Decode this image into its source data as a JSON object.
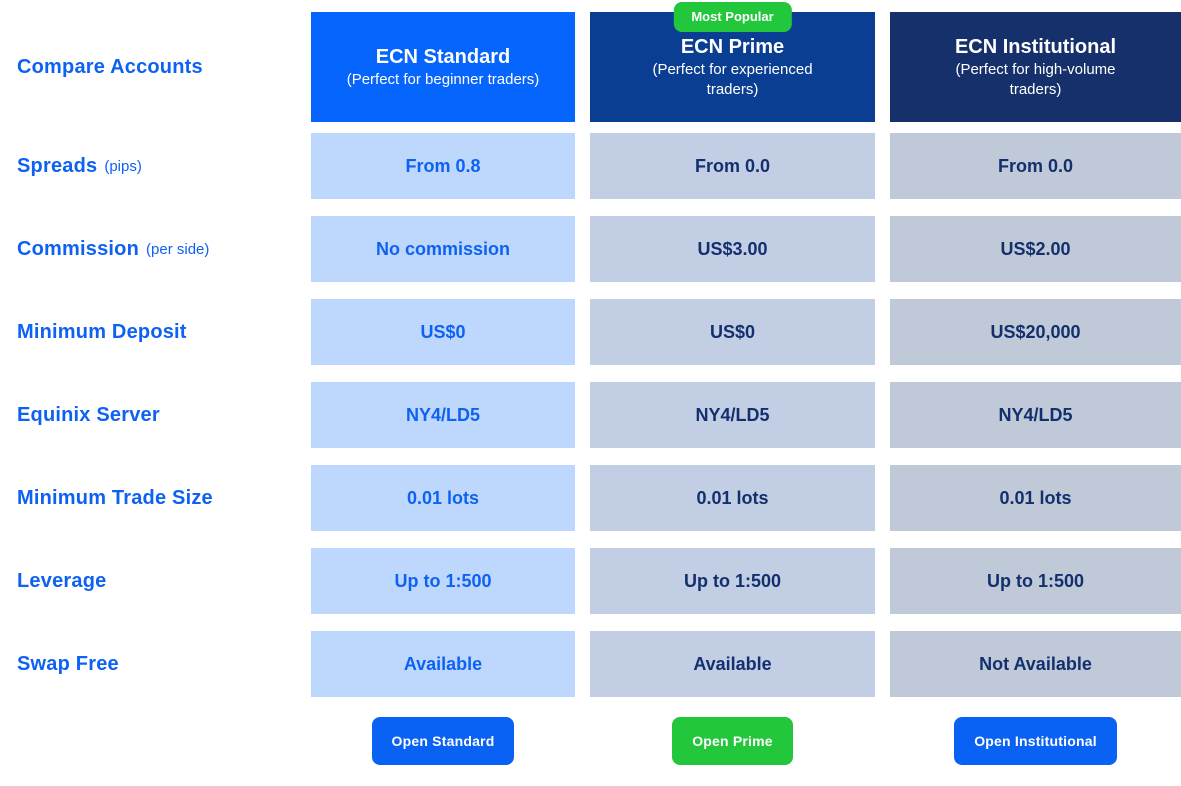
{
  "page": {
    "title_label": "Compare Accounts"
  },
  "colors": {
    "standard_header": "#0565fc",
    "prime_header": "#0a3e92",
    "institutional_header": "#16306b",
    "badge_green": "#23c73c",
    "button_blue": "#0a62f4",
    "standard_cell": "#bed7fc",
    "prime_cell": "#c1cee4",
    "institutional_cell": "#c0c9d8",
    "label_blue": "#0e62f3",
    "value_navy": "#132f6d"
  },
  "rows": [
    {
      "label": "Spreads",
      "note": "(pips)"
    },
    {
      "label": "Commission",
      "note": "(per side)"
    },
    {
      "label": "Minimum Deposit",
      "note": ""
    },
    {
      "label": "Equinix Server",
      "note": ""
    },
    {
      "label": "Minimum Trade Size",
      "note": ""
    },
    {
      "label": "Leverage",
      "note": ""
    },
    {
      "label": "Swap Free",
      "note": ""
    }
  ],
  "columns": [
    {
      "id": "standard",
      "title": "ECN Standard",
      "subtitle": "(Perfect for beginner traders)",
      "badge": "",
      "values": [
        "From 0.8",
        "No commission",
        "US$0",
        "NY4/LD5",
        "0.01 lots",
        "Up to 1:500",
        "Available"
      ],
      "button_label": "Open Standard"
    },
    {
      "id": "prime",
      "title": "ECN Prime",
      "subtitle": "(Perfect for experienced traders)",
      "badge": "Most Popular",
      "values": [
        "From 0.0",
        "US$3.00",
        "US$0",
        "NY4/LD5",
        "0.01 lots",
        "Up to 1:500",
        "Available"
      ],
      "button_label": "Open Prime"
    },
    {
      "id": "institutional",
      "title": "ECN Institutional",
      "subtitle": "(Perfect for high-volume traders)",
      "badge": "",
      "values": [
        "From 0.0",
        "US$2.00",
        "US$20,000",
        "NY4/LD5",
        "0.01 lots",
        "Up to 1:500",
        "Not Available"
      ],
      "button_label": "Open Institutional"
    }
  ]
}
